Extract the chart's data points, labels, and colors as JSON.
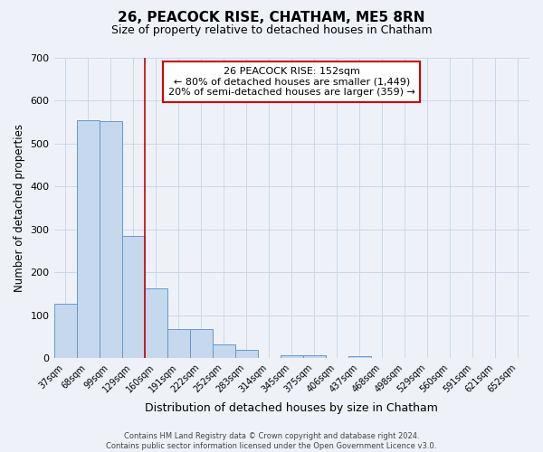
{
  "title": "26, PEACOCK RISE, CHATHAM, ME5 8RN",
  "subtitle": "Size of property relative to detached houses in Chatham",
  "xlabel": "Distribution of detached houses by size in Chatham",
  "ylabel": "Number of detached properties",
  "categories": [
    "37sqm",
    "68sqm",
    "99sqm",
    "129sqm",
    "160sqm",
    "191sqm",
    "222sqm",
    "252sqm",
    "283sqm",
    "314sqm",
    "345sqm",
    "375sqm",
    "406sqm",
    "437sqm",
    "468sqm",
    "498sqm",
    "529sqm",
    "560sqm",
    "591sqm",
    "621sqm",
    "652sqm"
  ],
  "values": [
    127,
    555,
    553,
    285,
    163,
    68,
    68,
    33,
    20,
    0,
    8,
    8,
    0,
    5,
    0,
    0,
    0,
    0,
    0,
    0,
    0
  ],
  "bar_color": "#c5d8ed",
  "bar_edge_color": "#6699cc",
  "grid_color": "#c8d8e8",
  "background_color": "#eef2f8",
  "red_line_x": 3.5,
  "annotation_line1": "26 PEACOCK RISE: 152sqm",
  "annotation_line2": "← 80% of detached houses are smaller (1,449)",
  "annotation_line3": "20% of semi-detached houses are larger (359) →",
  "annotation_box_color": "#ffffff",
  "annotation_box_edge": "#cc0000",
  "footer": "Contains HM Land Registry data © Crown copyright and database right 2024.\nContains public sector information licensed under the Open Government Licence v3.0.",
  "ylim": [
    0,
    700
  ],
  "yticks": [
    0,
    100,
    200,
    300,
    400,
    500,
    600,
    700
  ],
  "title_fontsize": 11,
  "subtitle_fontsize": 9
}
